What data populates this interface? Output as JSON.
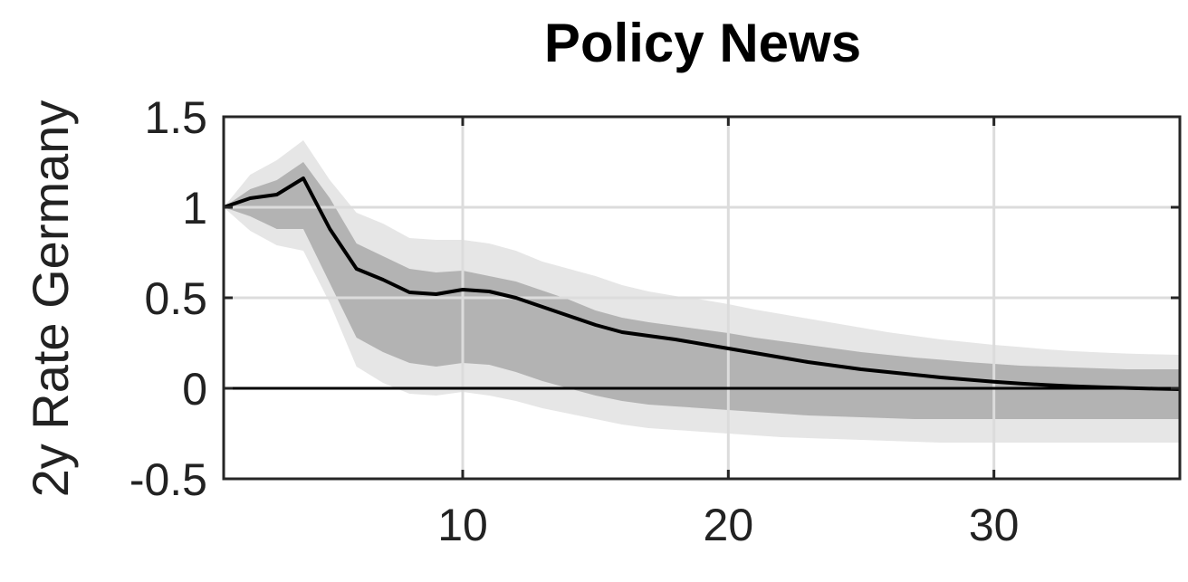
{
  "chart_data": {
    "type": "area",
    "title": "Policy News",
    "xlabel": "",
    "ylabel": "2y Rate Germany",
    "xlim": [
      1,
      37
    ],
    "ylim": [
      -0.5,
      1.5
    ],
    "grid": true,
    "xticks": [
      10,
      20,
      30
    ],
    "yticks": [
      -0.5,
      0,
      0.5,
      1,
      1.5
    ],
    "xtick_labels": [
      "10",
      "20",
      "30"
    ],
    "ytick_labels": [
      "-0.5",
      "0",
      "0.5",
      "1",
      "1.5"
    ],
    "reference_line_y": 0,
    "colors": {
      "outer_band": "#e6e6e6",
      "inner_band": "#b3b3b3",
      "line": "#000000",
      "grid": "#dcdcdc"
    },
    "x": [
      1,
      2,
      3,
      4,
      5,
      6,
      7,
      8,
      9,
      10,
      11,
      12,
      13,
      14,
      15,
      16,
      17,
      18,
      19,
      20,
      21,
      22,
      23,
      24,
      25,
      26,
      27,
      28,
      29,
      30,
      31,
      32,
      33,
      34,
      35,
      36,
      37
    ],
    "series": [
      {
        "role": "median",
        "values": [
          1.0,
          1.05,
          1.07,
          1.16,
          0.88,
          0.66,
          0.6,
          0.53,
          0.52,
          0.545,
          0.535,
          0.5,
          0.45,
          0.4,
          0.35,
          0.31,
          0.29,
          0.27,
          0.245,
          0.22,
          0.195,
          0.17,
          0.145,
          0.125,
          0.105,
          0.09,
          0.075,
          0.06,
          0.048,
          0.036,
          0.026,
          0.018,
          0.011,
          0.006,
          0.002,
          -0.002,
          -0.005
        ]
      },
      {
        "role": "inner_band",
        "lower": [
          1.0,
          0.95,
          0.88,
          0.88,
          0.58,
          0.28,
          0.2,
          0.14,
          0.12,
          0.14,
          0.13,
          0.09,
          0.04,
          0.0,
          -0.04,
          -0.07,
          -0.09,
          -0.1,
          -0.11,
          -0.12,
          -0.13,
          -0.14,
          -0.15,
          -0.155,
          -0.16,
          -0.165,
          -0.17,
          -0.17,
          -0.17,
          -0.17,
          -0.17,
          -0.17,
          -0.17,
          -0.17,
          -0.17,
          -0.17,
          -0.17
        ],
        "upper": [
          1.0,
          1.1,
          1.15,
          1.25,
          1.05,
          0.8,
          0.73,
          0.66,
          0.64,
          0.65,
          0.62,
          0.59,
          0.54,
          0.49,
          0.43,
          0.39,
          0.365,
          0.345,
          0.325,
          0.305,
          0.28,
          0.26,
          0.24,
          0.22,
          0.2,
          0.185,
          0.17,
          0.158,
          0.145,
          0.135,
          0.125,
          0.12,
          0.115,
          0.11,
          0.105,
          0.105,
          0.105
        ]
      },
      {
        "role": "outer_band",
        "lower": [
          1.0,
          0.87,
          0.79,
          0.76,
          0.47,
          0.12,
          0.03,
          -0.03,
          -0.04,
          -0.02,
          -0.04,
          -0.07,
          -0.11,
          -0.14,
          -0.17,
          -0.2,
          -0.22,
          -0.23,
          -0.24,
          -0.25,
          -0.26,
          -0.27,
          -0.275,
          -0.28,
          -0.285,
          -0.29,
          -0.295,
          -0.3,
          -0.3,
          -0.3,
          -0.3,
          -0.3,
          -0.3,
          -0.3,
          -0.3,
          -0.3,
          -0.3
        ],
        "upper": [
          1.0,
          1.18,
          1.26,
          1.37,
          1.15,
          0.97,
          0.91,
          0.83,
          0.82,
          0.82,
          0.8,
          0.76,
          0.7,
          0.66,
          0.62,
          0.57,
          0.535,
          0.51,
          0.49,
          0.465,
          0.435,
          0.41,
          0.385,
          0.36,
          0.335,
          0.31,
          0.29,
          0.27,
          0.255,
          0.24,
          0.228,
          0.215,
          0.205,
          0.198,
          0.192,
          0.188,
          0.185
        ]
      }
    ]
  }
}
